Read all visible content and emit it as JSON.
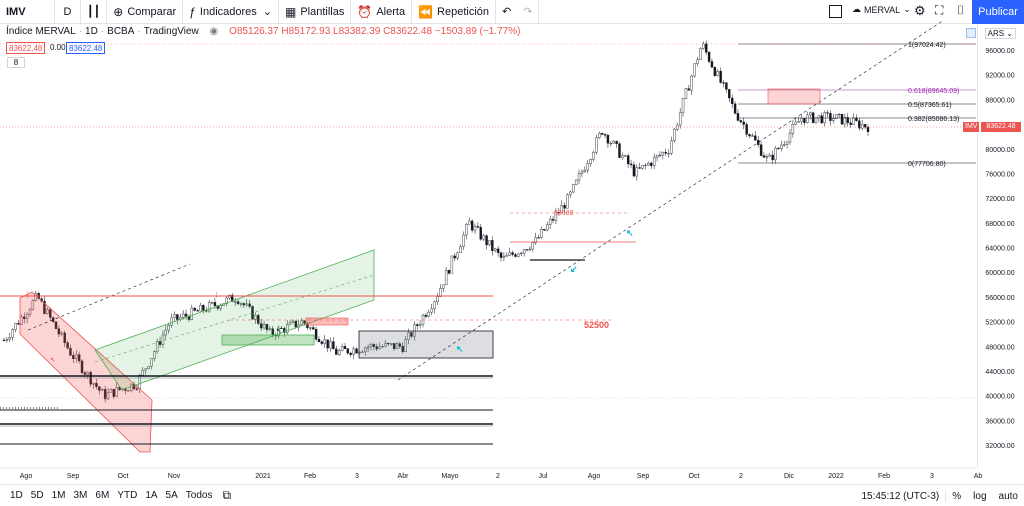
{
  "toolbar": {
    "symbol": "IMV",
    "interval": "D",
    "compare": "Comparar",
    "indicators": "Indicadores",
    "templates": "Plantillas",
    "alert": "Alerta",
    "replay": "Repetición",
    "layout_name": "MERVAL",
    "publish": "Publicar"
  },
  "legend": {
    "title": "Índice MERVAL",
    "interval": "1D",
    "exchange": "BCBA",
    "source": "TradingView",
    "ohlc": "O85126.37 H85172.93 L83382.39 C83622.48 −1503.89 (−1.77%)",
    "price_red": "83622.48",
    "price_zero": "0.00",
    "price_blue": "83622.48",
    "collapse": "8"
  },
  "axis": {
    "currency": "ARS",
    "price_ticks": [
      "96000.00",
      "92000.00",
      "88000.00",
      "84000.00",
      "80000.00",
      "76000.00",
      "72000.00",
      "68000.00",
      "64000.00",
      "60000.00",
      "56000.00",
      "52000.00",
      "48000.00",
      "44000.00",
      "40000.00",
      "36000.00",
      "32000.00"
    ],
    "last_label": "IMV",
    "last_price": "83622.48",
    "time_ticks": [
      "Ago",
      "Sep",
      "Oct",
      "Nov",
      "2021",
      "Feb",
      "3",
      "Abr",
      "Mayo",
      "2",
      "Jul",
      "Ago",
      "Sep",
      "Oct",
      "2",
      "Dic",
      "2022",
      "Feb",
      "3",
      "Ab"
    ]
  },
  "annotations": {
    "fib_1": "1(97024.42)",
    "fib_0618": "0.618(89645.09)",
    "fib_05": "0.5(87365.61)",
    "fib_0382": "0.382(85086.13)",
    "fib_0": "0(77706.80)",
    "level_69688": "69688",
    "level_52500": "52500"
  },
  "bottom": {
    "ranges": [
      "1D",
      "5D",
      "1M",
      "3M",
      "6M",
      "YTD",
      "1A",
      "5A",
      "Todos"
    ],
    "clock": "15:45:12 (UTC-3)",
    "percent": "%",
    "log": "log",
    "auto": "auto"
  },
  "chart_data": {
    "type": "line",
    "title": "",
    "xlabel": "",
    "ylabel": "",
    "ylim": [
      30000,
      98000
    ],
    "approx_close": [
      {
        "x": "Ago 2020",
        "y": 49000
      },
      {
        "x": "Ago 2020",
        "y": 56000
      },
      {
        "x": "Sep 2020",
        "y": 47000
      },
      {
        "x": "Sep 2020",
        "y": 40000
      },
      {
        "x": "Oct 2020",
        "y": 42000
      },
      {
        "x": "Nov 2020",
        "y": 52000
      },
      {
        "x": "Nov 2020",
        "y": 54000
      },
      {
        "x": "Dic 2020",
        "y": 56000
      },
      {
        "x": "2021",
        "y": 50000
      },
      {
        "x": "Feb 2021",
        "y": 52000
      },
      {
        "x": "Mar 2021",
        "y": 47000
      },
      {
        "x": "Abr 2021",
        "y": 48000
      },
      {
        "x": "Mayo 2021",
        "y": 48000
      },
      {
        "x": "Jun 2021",
        "y": 56000
      },
      {
        "x": "Jun 2021",
        "y": 68000
      },
      {
        "x": "Jul 2021",
        "y": 62000
      },
      {
        "x": "Ago 2021",
        "y": 65000
      },
      {
        "x": "Sep 2021",
        "y": 72000
      },
      {
        "x": "Sep 2021",
        "y": 83000
      },
      {
        "x": "Oct 2021",
        "y": 76000
      },
      {
        "x": "Oct 2021",
        "y": 80000
      },
      {
        "x": "Nov 2021",
        "y": 97000
      },
      {
        "x": "Nov 2021",
        "y": 86000
      },
      {
        "x": "Dic 2021",
        "y": 78000
      },
      {
        "x": "Dic 2021",
        "y": 85000
      },
      {
        "x": "2022",
        "y": 85000
      },
      {
        "x": "Ene 2022",
        "y": 83622
      }
    ]
  }
}
